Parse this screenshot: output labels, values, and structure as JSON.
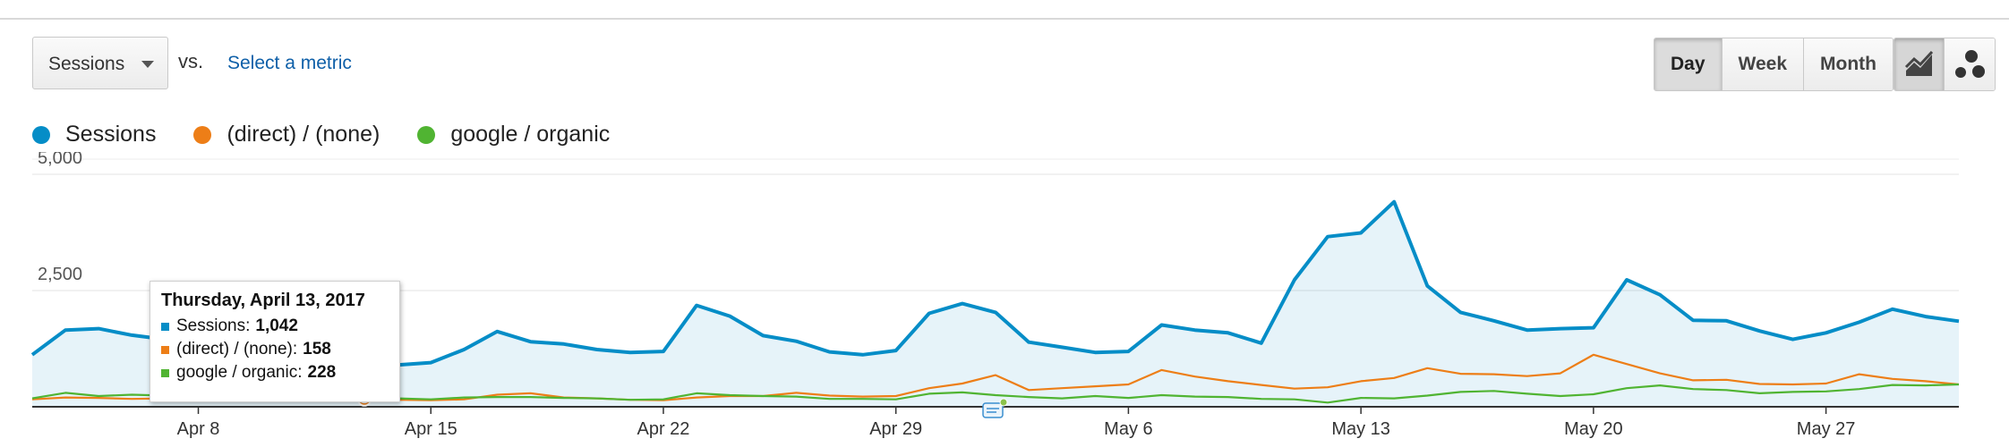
{
  "controls": {
    "metric_select": "Sessions",
    "vs_label": "vs.",
    "compare_link": "Select a metric",
    "periods": [
      {
        "label": "Day",
        "active": true
      },
      {
        "label": "Week",
        "active": false
      },
      {
        "label": "Month",
        "active": false
      }
    ],
    "views": [
      {
        "icon": "line-chart-icon",
        "active": true
      },
      {
        "icon": "motion-chart-icon",
        "active": false
      }
    ]
  },
  "tooltip": {
    "title": "Thursday, April 13, 2017",
    "rows": [
      {
        "label": "Sessions:",
        "value": "1,042",
        "color": "#058dc7"
      },
      {
        "label": "(direct) / (none):",
        "value": "158",
        "color": "#ed7e17"
      },
      {
        "label": "google / organic:",
        "value": "228",
        "color": "#50b432"
      }
    ]
  },
  "chart_data": {
    "type": "line",
    "title": "",
    "xlabel": "",
    "ylabel": "",
    "ylim": [
      0,
      5000
    ],
    "yticks": [
      "2,500",
      "5,000"
    ],
    "ytick_values": [
      2500,
      5000
    ],
    "x_start": "2017-04-03",
    "x": [
      "2017-04-03",
      "2017-04-04",
      "2017-04-05",
      "2017-04-06",
      "2017-04-07",
      "2017-04-08",
      "2017-04-09",
      "2017-04-10",
      "2017-04-11",
      "2017-04-12",
      "2017-04-13",
      "2017-04-14",
      "2017-04-15",
      "2017-04-16",
      "2017-04-17",
      "2017-04-18",
      "2017-04-19",
      "2017-04-20",
      "2017-04-21",
      "2017-04-22",
      "2017-04-23",
      "2017-04-24",
      "2017-04-25",
      "2017-04-26",
      "2017-04-27",
      "2017-04-28",
      "2017-04-29",
      "2017-04-30",
      "2017-05-01",
      "2017-05-02",
      "2017-05-03",
      "2017-05-04",
      "2017-05-05",
      "2017-05-06",
      "2017-05-07",
      "2017-05-08",
      "2017-05-09",
      "2017-05-10",
      "2017-05-11",
      "2017-05-12",
      "2017-05-13",
      "2017-05-14",
      "2017-05-15",
      "2017-05-16",
      "2017-05-17",
      "2017-05-18",
      "2017-05-19",
      "2017-05-20",
      "2017-05-21",
      "2017-05-22",
      "2017-05-23",
      "2017-05-24",
      "2017-05-25",
      "2017-05-26",
      "2017-05-27",
      "2017-05-28",
      "2017-05-29",
      "2017-05-30",
      "2017-05-31"
    ],
    "xticks": [
      {
        "label": "Apr 8",
        "index": 5
      },
      {
        "label": "Apr 15",
        "index": 12
      },
      {
        "label": "Apr 22",
        "index": 19
      },
      {
        "label": "Apr 29",
        "index": 26
      },
      {
        "label": "May 6",
        "index": 33
      },
      {
        "label": "May 13",
        "index": 40
      },
      {
        "label": "May 20",
        "index": 47
      },
      {
        "label": "May 27",
        "index": 54
      }
    ],
    "highlight_index": 10,
    "annotation_index": 29,
    "legend_position": "top-left",
    "grid": true,
    "series": [
      {
        "name": "Sessions",
        "color": "#058dc7",
        "fill": true,
        "values": [
          1120,
          1650,
          1680,
          1540,
          1450,
          1380,
          1300,
          1250,
          1220,
          1150,
          1042,
          900,
          950,
          1230,
          1620,
          1400,
          1350,
          1230,
          1170,
          1190,
          2180,
          1950,
          1530,
          1410,
          1180,
          1120,
          1210,
          2010,
          2220,
          2030,
          1390,
          1280,
          1170,
          1190,
          1760,
          1650,
          1590,
          1370,
          2730,
          3660,
          3740,
          4410,
          2600,
          2030,
          1850,
          1650,
          1680,
          1700,
          2730,
          2410,
          1860,
          1850,
          1630,
          1450,
          1590,
          1820,
          2100,
          1940,
          1840
        ]
      },
      {
        "name": "(direct) / (none)",
        "color": "#ed7e17",
        "fill": false,
        "values": [
          160,
          200,
          190,
          170,
          180,
          170,
          160,
          160,
          150,
          155,
          158,
          150,
          140,
          160,
          260,
          290,
          200,
          180,
          150,
          140,
          200,
          230,
          230,
          300,
          240,
          220,
          230,
          400,
          500,
          680,
          360,
          400,
          440,
          480,
          790,
          650,
          550,
          470,
          390,
          420,
          550,
          620,
          830,
          710,
          700,
          660,
          720,
          1120,
          920,
          720,
          570,
          580,
          490,
          480,
          500,
          700,
          600,
          550,
          480
        ]
      },
      {
        "name": "google / organic",
        "color": "#50b432",
        "fill": false,
        "values": [
          180,
          300,
          230,
          260,
          240,
          250,
          250,
          230,
          230,
          230,
          228,
          180,
          160,
          200,
          210,
          210,
          190,
          180,
          150,
          160,
          290,
          250,
          230,
          220,
          170,
          170,
          160,
          280,
          310,
          250,
          210,
          180,
          230,
          190,
          250,
          220,
          210,
          170,
          160,
          90,
          190,
          180,
          240,
          320,
          340,
          280,
          230,
          270,
          400,
          460,
          380,
          360,
          290,
          320,
          330,
          380,
          470,
          460,
          480
        ]
      }
    ]
  }
}
